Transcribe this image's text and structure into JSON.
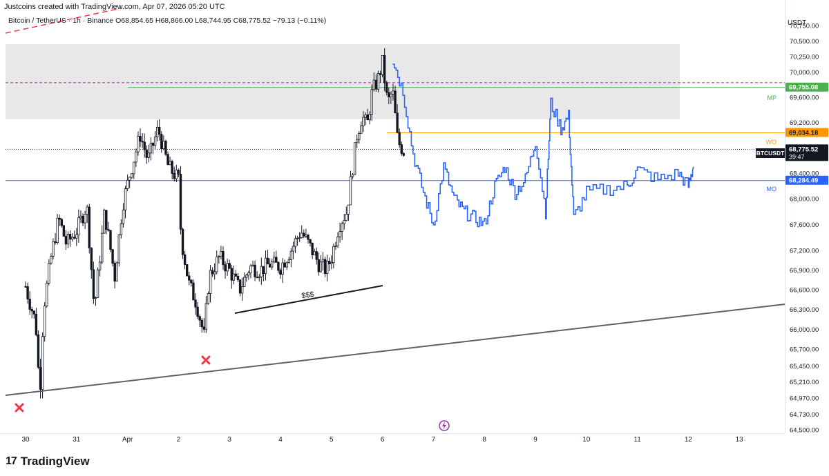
{
  "header": {
    "attribution": "Justcoins created with TradingView.com, Apr 07, 2026 05:20 UTC"
  },
  "symbol_line": {
    "symbol": "Bitcoin / TetherUS · 1h · Binance",
    "open": "O68,854.65",
    "high": "H68,866.00",
    "low": "L68,744.95",
    "close": "C68,775.52",
    "change": "−79.13 (−0.11%)"
  },
  "currency": "USDT",
  "footer": {
    "logo_mark": "17",
    "logo_text": "TradingView"
  },
  "colors": {
    "up": "#131722",
    "down": "#131722",
    "projection": "#2962ff",
    "mp_line": "#4caf50",
    "wo_line": "#ff9800",
    "mo_line": "#2962ff",
    "zone": "#d9d9d9",
    "dashed_purple": "#9c27b0",
    "trend": "#5d606b",
    "x_marker": "#f23645"
  },
  "chart_data": {
    "type": "candlestick",
    "title": "Bitcoin / TetherUS · 1h · Binance",
    "ylabel": "USDT",
    "ylim": [
      64500,
      70750
    ],
    "y_scale": "log",
    "x_ticks": [
      "30",
      "31",
      "Apr",
      "2",
      "3",
      "4",
      "5",
      "6",
      "7",
      "8",
      "9",
      "10",
      "11",
      "12",
      "13"
    ],
    "y_ticks": [
      "70,750.00",
      "70,500.00",
      "70,250.00",
      "70,000.00",
      "69,600.00",
      "69,200.00",
      "68,400.00",
      "68,000.00",
      "67,600.00",
      "67,200.00",
      "66,900.00",
      "66,600.00",
      "66,300.00",
      "66,000.00",
      "65,700.00",
      "65,450.00",
      "65,210.00",
      "64,970.00",
      "64,730.00",
      "64,500.00"
    ],
    "levels": [
      {
        "label": "MP",
        "price": 69755.08,
        "price_text": "69,755.08",
        "color": "#4caf50"
      },
      {
        "label": "WO",
        "price": 69034.18,
        "price_text": "69,034.18",
        "color": "#ff9800"
      },
      {
        "label": "MO",
        "price": 68284.49,
        "price_text": "68,284.49",
        "color": "#2962ff"
      }
    ],
    "current_price": {
      "label": "BTCUSDT",
      "price": 68775.52,
      "price_text": "68,775.52",
      "countdown": "39:47"
    },
    "supply_zone": {
      "from": 69250,
      "to": 70450
    },
    "dashed_level": 69830,
    "annotations": [
      {
        "text": "$$$"
      }
    ],
    "price_anchors": [
      {
        "day": 0.0,
        "price": 66650
      },
      {
        "day": 0.05,
        "price": 66500
      },
      {
        "day": 0.2,
        "price": 66100
      },
      {
        "day": 0.28,
        "price": 65000
      },
      {
        "day": 0.35,
        "price": 66300
      },
      {
        "day": 0.5,
        "price": 67100
      },
      {
        "day": 0.65,
        "price": 67700
      },
      {
        "day": 0.8,
        "price": 67300
      },
      {
        "day": 1.0,
        "price": 67500
      },
      {
        "day": 1.2,
        "price": 67900
      },
      {
        "day": 1.35,
        "price": 66300
      },
      {
        "day": 1.55,
        "price": 67800
      },
      {
        "day": 1.75,
        "price": 66800
      },
      {
        "day": 1.9,
        "price": 67900
      },
      {
        "day": 2.05,
        "price": 68400
      },
      {
        "day": 2.25,
        "price": 69000
      },
      {
        "day": 2.4,
        "price": 68600
      },
      {
        "day": 2.6,
        "price": 69100
      },
      {
        "day": 2.8,
        "price": 68500
      },
      {
        "day": 3.0,
        "price": 68300
      },
      {
        "day": 3.05,
        "price": 67400
      },
      {
        "day": 3.2,
        "price": 66700
      },
      {
        "day": 3.35,
        "price": 66400
      },
      {
        "day": 3.5,
        "price": 65900
      },
      {
        "day": 3.6,
        "price": 66800
      },
      {
        "day": 3.8,
        "price": 67100
      },
      {
        "day": 4.0,
        "price": 66900
      },
      {
        "day": 4.2,
        "price": 66600
      },
      {
        "day": 4.4,
        "price": 66950
      },
      {
        "day": 4.6,
        "price": 66900
      },
      {
        "day": 4.8,
        "price": 67000
      },
      {
        "day": 5.0,
        "price": 66950
      },
      {
        "day": 5.2,
        "price": 67200
      },
      {
        "day": 5.4,
        "price": 67500
      },
      {
        "day": 5.55,
        "price": 67300
      },
      {
        "day": 5.75,
        "price": 67000
      },
      {
        "day": 5.9,
        "price": 66900
      },
      {
        "day": 6.0,
        "price": 67100
      },
      {
        "day": 6.15,
        "price": 67600
      },
      {
        "day": 6.3,
        "price": 67800
      },
      {
        "day": 6.4,
        "price": 68400
      },
      {
        "day": 6.5,
        "price": 69000
      },
      {
        "day": 6.6,
        "price": 69300
      },
      {
        "day": 6.7,
        "price": 69150
      },
      {
        "day": 6.8,
        "price": 69700
      },
      {
        "day": 6.9,
        "price": 69850
      },
      {
        "day": 7.0,
        "price": 70150
      },
      {
        "day": 7.1,
        "price": 69500
      },
      {
        "day": 7.2,
        "price": 69700
      },
      {
        "day": 7.3,
        "price": 68900
      },
      {
        "day": 7.45,
        "price": 68700
      }
    ],
    "projection": [
      {
        "day": 7.2,
        "price": 70200
      },
      {
        "day": 7.4,
        "price": 69700
      },
      {
        "day": 7.6,
        "price": 68700
      },
      {
        "day": 7.8,
        "price": 68100
      },
      {
        "day": 8.0,
        "price": 67600
      },
      {
        "day": 8.2,
        "price": 68500
      },
      {
        "day": 8.4,
        "price": 68000
      },
      {
        "day": 8.6,
        "price": 67800
      },
      {
        "day": 8.8,
        "price": 67700
      },
      {
        "day": 9.0,
        "price": 67600
      },
      {
        "day": 9.2,
        "price": 68200
      },
      {
        "day": 9.4,
        "price": 68500
      },
      {
        "day": 9.6,
        "price": 68100
      },
      {
        "day": 9.8,
        "price": 68300
      },
      {
        "day": 10.0,
        "price": 68900
      },
      {
        "day": 10.2,
        "price": 67800
      },
      {
        "day": 10.3,
        "price": 69500
      },
      {
        "day": 10.5,
        "price": 69100
      },
      {
        "day": 10.65,
        "price": 69300
      },
      {
        "day": 10.75,
        "price": 67700
      },
      {
        "day": 11.0,
        "price": 68100
      },
      {
        "day": 11.4,
        "price": 68150
      },
      {
        "day": 11.8,
        "price": 68200
      },
      {
        "day": 12.0,
        "price": 68450
      },
      {
        "day": 12.4,
        "price": 68300
      },
      {
        "day": 12.8,
        "price": 68400
      },
      {
        "day": 13.0,
        "price": 68200
      },
      {
        "day": 13.1,
        "price": 68500
      }
    ]
  }
}
